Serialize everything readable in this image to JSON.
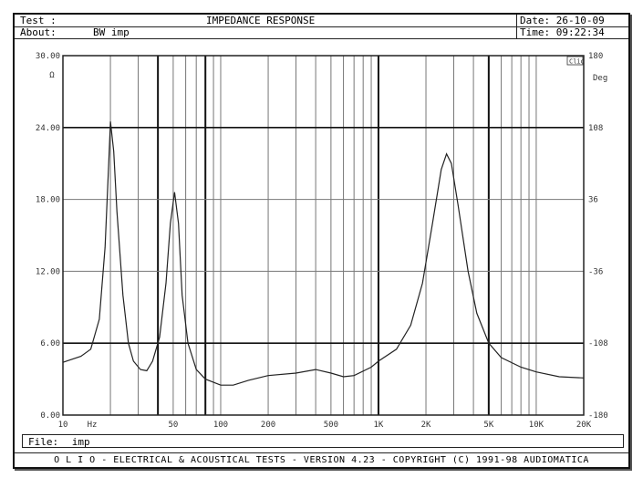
{
  "header": {
    "test_label": "Test :",
    "title": "IMPEDANCE RESPONSE",
    "date": "Date: 26-10-09",
    "about_label": "About:",
    "about_value": "BW imp",
    "time": "Time: 09:22:34"
  },
  "file": {
    "label": "File:",
    "value": "imp"
  },
  "footer": "O L I O  -  ELECTRICAL & ACOUSTICAL TESTS  -  VERSION 4.23  -  COPYRIGHT (C) 1991-98 AUDIOMATICA",
  "chart_data": {
    "type": "line",
    "title": "IMPEDANCE RESPONSE",
    "xscale": "log",
    "xlim": [
      10,
      20000
    ],
    "ylim": [
      0,
      30
    ],
    "y2lim": [
      -180,
      180
    ],
    "xlabel": "Hz",
    "ylabel": "Ω",
    "y2label": "Deg",
    "legend_box": "Clio",
    "x_tick_labels": [
      {
        "v": 10,
        "t": "10"
      },
      {
        "v": 20,
        "t": "Hz"
      },
      {
        "v": 50,
        "t": "50"
      },
      {
        "v": 100,
        "t": "100"
      },
      {
        "v": 200,
        "t": "200"
      },
      {
        "v": 500,
        "t": "500"
      },
      {
        "v": 1000,
        "t": "1K"
      },
      {
        "v": 2000,
        "t": "2K"
      },
      {
        "v": 5000,
        "t": "5K"
      },
      {
        "v": 10000,
        "t": "10K"
      },
      {
        "v": 20000,
        "t": "20K"
      }
    ],
    "y_tick_labels": [
      "0.00",
      "6.00",
      "12.00",
      "18.00",
      "24.00",
      "30.00"
    ],
    "y2_tick_labels": [
      "-180",
      "-108",
      "-36",
      "36",
      "108",
      "180"
    ],
    "grid": true,
    "series": [
      {
        "x": [
          10,
          13,
          15,
          17,
          18.5,
          19.5,
          20,
          21,
          22,
          24,
          26,
          28,
          31,
          34,
          37,
          41,
          45,
          48,
          51,
          54,
          57,
          62,
          70,
          80,
          100,
          120,
          150,
          200,
          300,
          400,
          500,
          600,
          700,
          900,
          1000,
          1300,
          1600,
          1900,
          2200,
          2500,
          2700,
          2900,
          3200,
          3700,
          4200,
          5000,
          6000,
          8000,
          10000,
          14000,
          20000
        ],
        "y": [
          4.4,
          4.9,
          5.5,
          8,
          14,
          21,
          24.5,
          22,
          17,
          10,
          6,
          4.5,
          3.8,
          3.7,
          4.5,
          6.5,
          11,
          16,
          18.6,
          16,
          10,
          6,
          3.8,
          3.0,
          2.5,
          2.5,
          2.9,
          3.3,
          3.5,
          3.8,
          3.5,
          3.2,
          3.3,
          4.0,
          4.5,
          5.5,
          7.5,
          11,
          16,
          20.5,
          21.8,
          21,
          17.5,
          12,
          8.5,
          6,
          4.8,
          4.0,
          3.6,
          3.2,
          3.1
        ]
      }
    ]
  }
}
